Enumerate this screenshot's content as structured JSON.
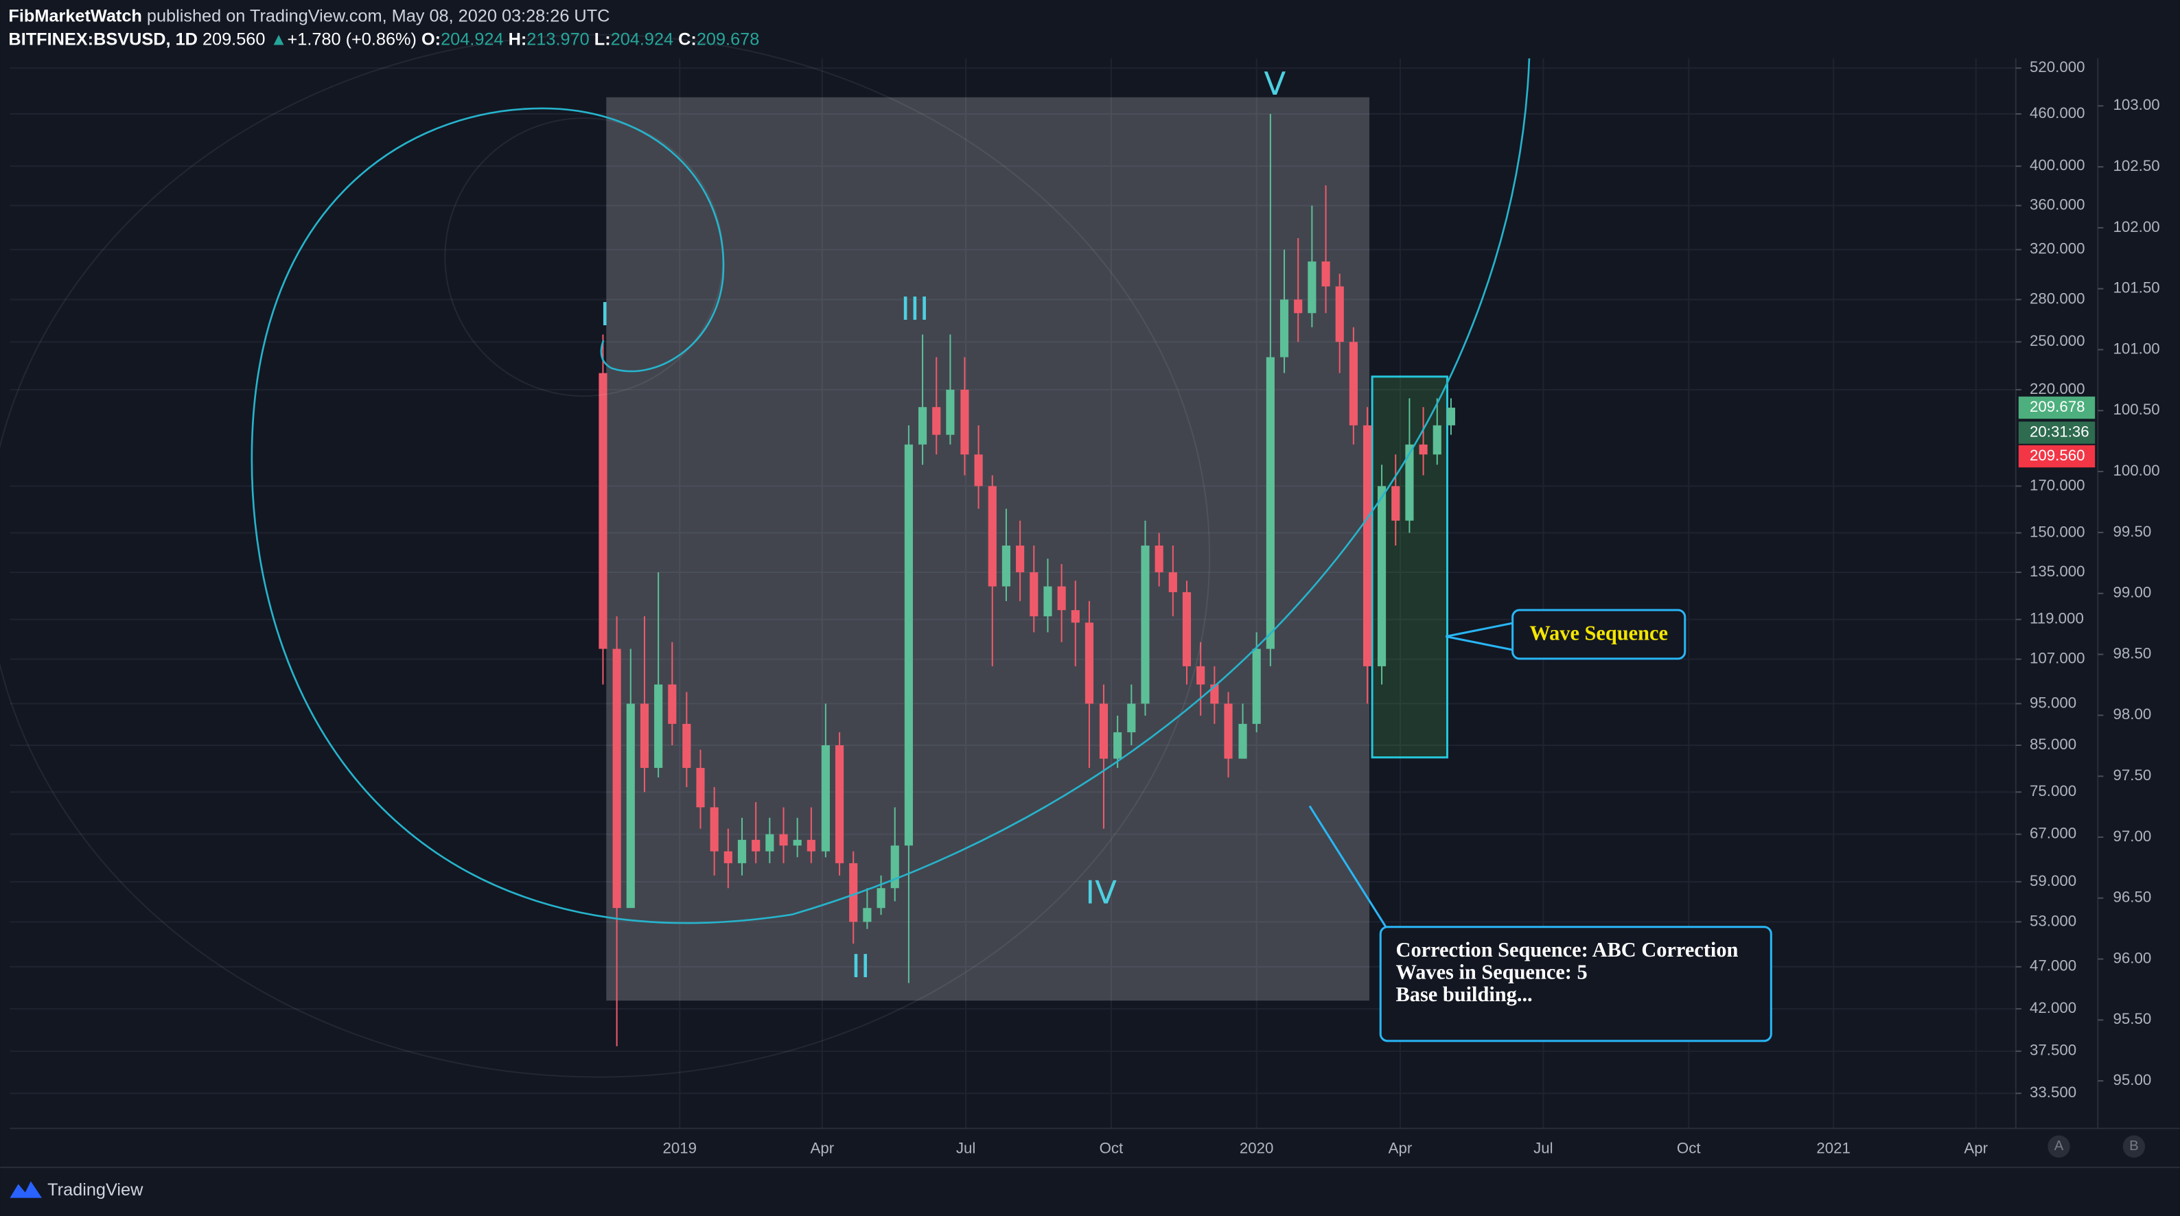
{
  "chart_data": {
    "type": "candlestick",
    "header": {
      "author": "FibMarketWatch",
      "published": "published on TradingView.com, May 08, 2020 03:28:26 UTC",
      "symbol": "BITFINEX:BSVUSD, 1D",
      "last": "209.560",
      "change": "+1.780 (+0.86%)",
      "open_label": "O:",
      "open": "204.924",
      "high_label": "H:",
      "high": "213.970",
      "low_label": "L:",
      "low": "204.924",
      "close_label": "C:",
      "close": "209.678",
      "countdown": "20:31:36"
    },
    "x": [
      2018.867,
      2018.891,
      2018.915,
      2018.939,
      2018.963,
      2018.987,
      2019.012,
      2019.036,
      2019.06,
      2019.084,
      2019.108,
      2019.132,
      2019.156,
      2019.18,
      2019.204,
      2019.228,
      2019.253,
      2019.277,
      2019.301,
      2019.325,
      2019.349,
      2019.373,
      2019.397,
      2019.421,
      2019.445,
      2019.469,
      2019.494,
      2019.518,
      2019.542,
      2019.566,
      2019.59,
      2019.614,
      2019.638,
      2019.662,
      2019.686,
      2019.71,
      2019.735,
      2019.759,
      2019.783,
      2019.807,
      2019.831,
      2019.855,
      2019.879,
      2019.903,
      2019.927,
      2019.951,
      2019.976,
      2020.0,
      2020.024,
      2020.048,
      2020.072,
      2020.096,
      2020.12,
      2020.144,
      2020.168,
      2020.192,
      2020.217,
      2020.241,
      2020.265,
      2020.289,
      2020.313,
      2020.337
    ],
    "open": [
      230,
      110,
      55,
      95,
      80,
      100,
      90,
      80,
      72,
      64,
      62,
      66,
      64,
      67,
      65,
      66,
      64,
      85,
      62,
      53,
      55,
      58,
      65,
      190,
      210,
      195,
      220,
      185,
      170,
      130,
      145,
      135,
      120,
      130,
      122,
      118,
      95,
      82,
      88,
      95,
      145,
      135,
      128,
      105,
      100,
      95,
      82,
      90,
      110,
      240,
      280,
      270,
      310,
      290,
      250,
      200,
      105,
      170,
      155,
      190,
      185,
      200
    ],
    "high": [
      255,
      120,
      110,
      120,
      135,
      112,
      98,
      84,
      76,
      68,
      70,
      73,
      70,
      72,
      70,
      72,
      95,
      88,
      64,
      58,
      60,
      72,
      200,
      255,
      240,
      255,
      240,
      200,
      175,
      160,
      155,
      145,
      140,
      138,
      132,
      125,
      100,
      92,
      100,
      155,
      150,
      145,
      132,
      112,
      105,
      98,
      95,
      115,
      460,
      320,
      330,
      360,
      380,
      300,
      260,
      210,
      180,
      185,
      215,
      210,
      215,
      215
    ],
    "low": [
      100,
      38,
      55,
      75,
      78,
      85,
      76,
      68,
      60,
      58,
      60,
      62,
      62,
      62,
      63,
      62,
      63,
      60,
      50,
      52,
      54,
      56,
      45,
      180,
      185,
      190,
      175,
      160,
      105,
      125,
      125,
      115,
      115,
      112,
      105,
      80,
      68,
      80,
      85,
      92,
      130,
      120,
      100,
      92,
      90,
      78,
      82,
      88,
      105,
      230,
      250,
      260,
      270,
      230,
      190,
      95,
      100,
      145,
      150,
      175,
      180,
      195
    ],
    "close": [
      110,
      55,
      95,
      80,
      100,
      90,
      80,
      72,
      64,
      62,
      66,
      64,
      67,
      65,
      66,
      64,
      85,
      62,
      53,
      55,
      58,
      65,
      190,
      210,
      195,
      220,
      185,
      170,
      130,
      145,
      135,
      120,
      130,
      122,
      118,
      95,
      82,
      88,
      95,
      145,
      135,
      128,
      105,
      100,
      95,
      82,
      90,
      110,
      240,
      280,
      270,
      310,
      290,
      250,
      200,
      105,
      170,
      155,
      190,
      185,
      200,
      209.678
    ],
    "up_color": "#5cbf97",
    "down_color": "#ef5a6a",
    "xlim": [
      2017.839,
      2021.316
    ],
    "xticks": [
      2019,
      {
        "value": 2019.247,
        "label": "Apr"
      },
      {
        "value": 2019.496,
        "label": "Jul"
      },
      {
        "value": 2019.748,
        "label": "Oct"
      },
      2020,
      {
        "value": 2020.249,
        "label": "Apr"
      },
      {
        "value": 2020.497,
        "label": "Jul"
      },
      {
        "value": 2020.749,
        "label": "Oct"
      },
      2021,
      {
        "value": 2021.247,
        "label": "Apr"
      }
    ],
    "ylim": [
      30.5,
      533.7
    ],
    "log_scale": true,
    "yticks": [
      {
        "value": 520,
        "label": "520.000"
      },
      {
        "value": 460,
        "label": "460.000"
      },
      {
        "value": 400,
        "label": "400.000"
      },
      {
        "value": 360,
        "label": "360.000"
      },
      {
        "value": 320,
        "label": "320.000"
      },
      {
        "value": 280,
        "label": "280.000"
      },
      {
        "value": 250,
        "label": "250.000"
      },
      {
        "value": 220,
        "label": "220.000"
      },
      {
        "value": 170,
        "label": "170.000"
      },
      {
        "value": 150,
        "label": "150.000"
      },
      {
        "value": 135,
        "label": "135.000"
      },
      {
        "value": 119,
        "label": "119.000"
      },
      {
        "value": 107,
        "label": "107.000"
      },
      {
        "value": 95,
        "label": "95.000"
      },
      {
        "value": 85,
        "label": "85.000"
      },
      {
        "value": 75,
        "label": "75.000"
      },
      {
        "value": 67,
        "label": "67.000"
      },
      {
        "value": 59,
        "label": "59.000"
      },
      {
        "value": 53,
        "label": "53.000"
      },
      {
        "value": 47,
        "label": "47.000"
      },
      {
        "value": 42,
        "label": "42.000"
      },
      {
        "value": 37.5,
        "label": "37.500"
      },
      {
        "value": 33.5,
        "label": "33.500"
      }
    ],
    "y2lim": [
      94.61,
      103.39
    ],
    "y2ticks": [
      {
        "value": 103,
        "label": "103.00"
      },
      {
        "value": 102.5,
        "label": "102.50"
      },
      {
        "value": 102,
        "label": "102.00"
      },
      {
        "value": 101.5,
        "label": "101.50"
      },
      {
        "value": 101,
        "label": "101.00"
      },
      {
        "value": 100.5,
        "label": "100.50"
      },
      {
        "value": 100,
        "label": "100.00"
      },
      {
        "value": 99.5,
        "label": "99.50"
      },
      {
        "value": 99,
        "label": "99.00"
      },
      {
        "value": 98.5,
        "label": "98.50"
      },
      {
        "value": 98,
        "label": "98.00"
      },
      {
        "value": 97.5,
        "label": "97.50"
      },
      {
        "value": 97,
        "label": "97.00"
      },
      {
        "value": 96.5,
        "label": "96.50"
      },
      {
        "value": 96,
        "label": "96.00"
      },
      {
        "value": 95.5,
        "label": "95.50"
      },
      {
        "value": 95,
        "label": "95.00"
      }
    ],
    "grid": true,
    "wave_labels": [
      "I",
      "II",
      "III",
      "IV",
      "V"
    ],
    "annotations": [
      "Wave Sequence",
      "Correction Sequence: ABC Correction",
      "Waves in Sequence: 5",
      "Base building..."
    ],
    "scale_buttons": [
      "A",
      "B"
    ],
    "brand": "TradingView"
  }
}
